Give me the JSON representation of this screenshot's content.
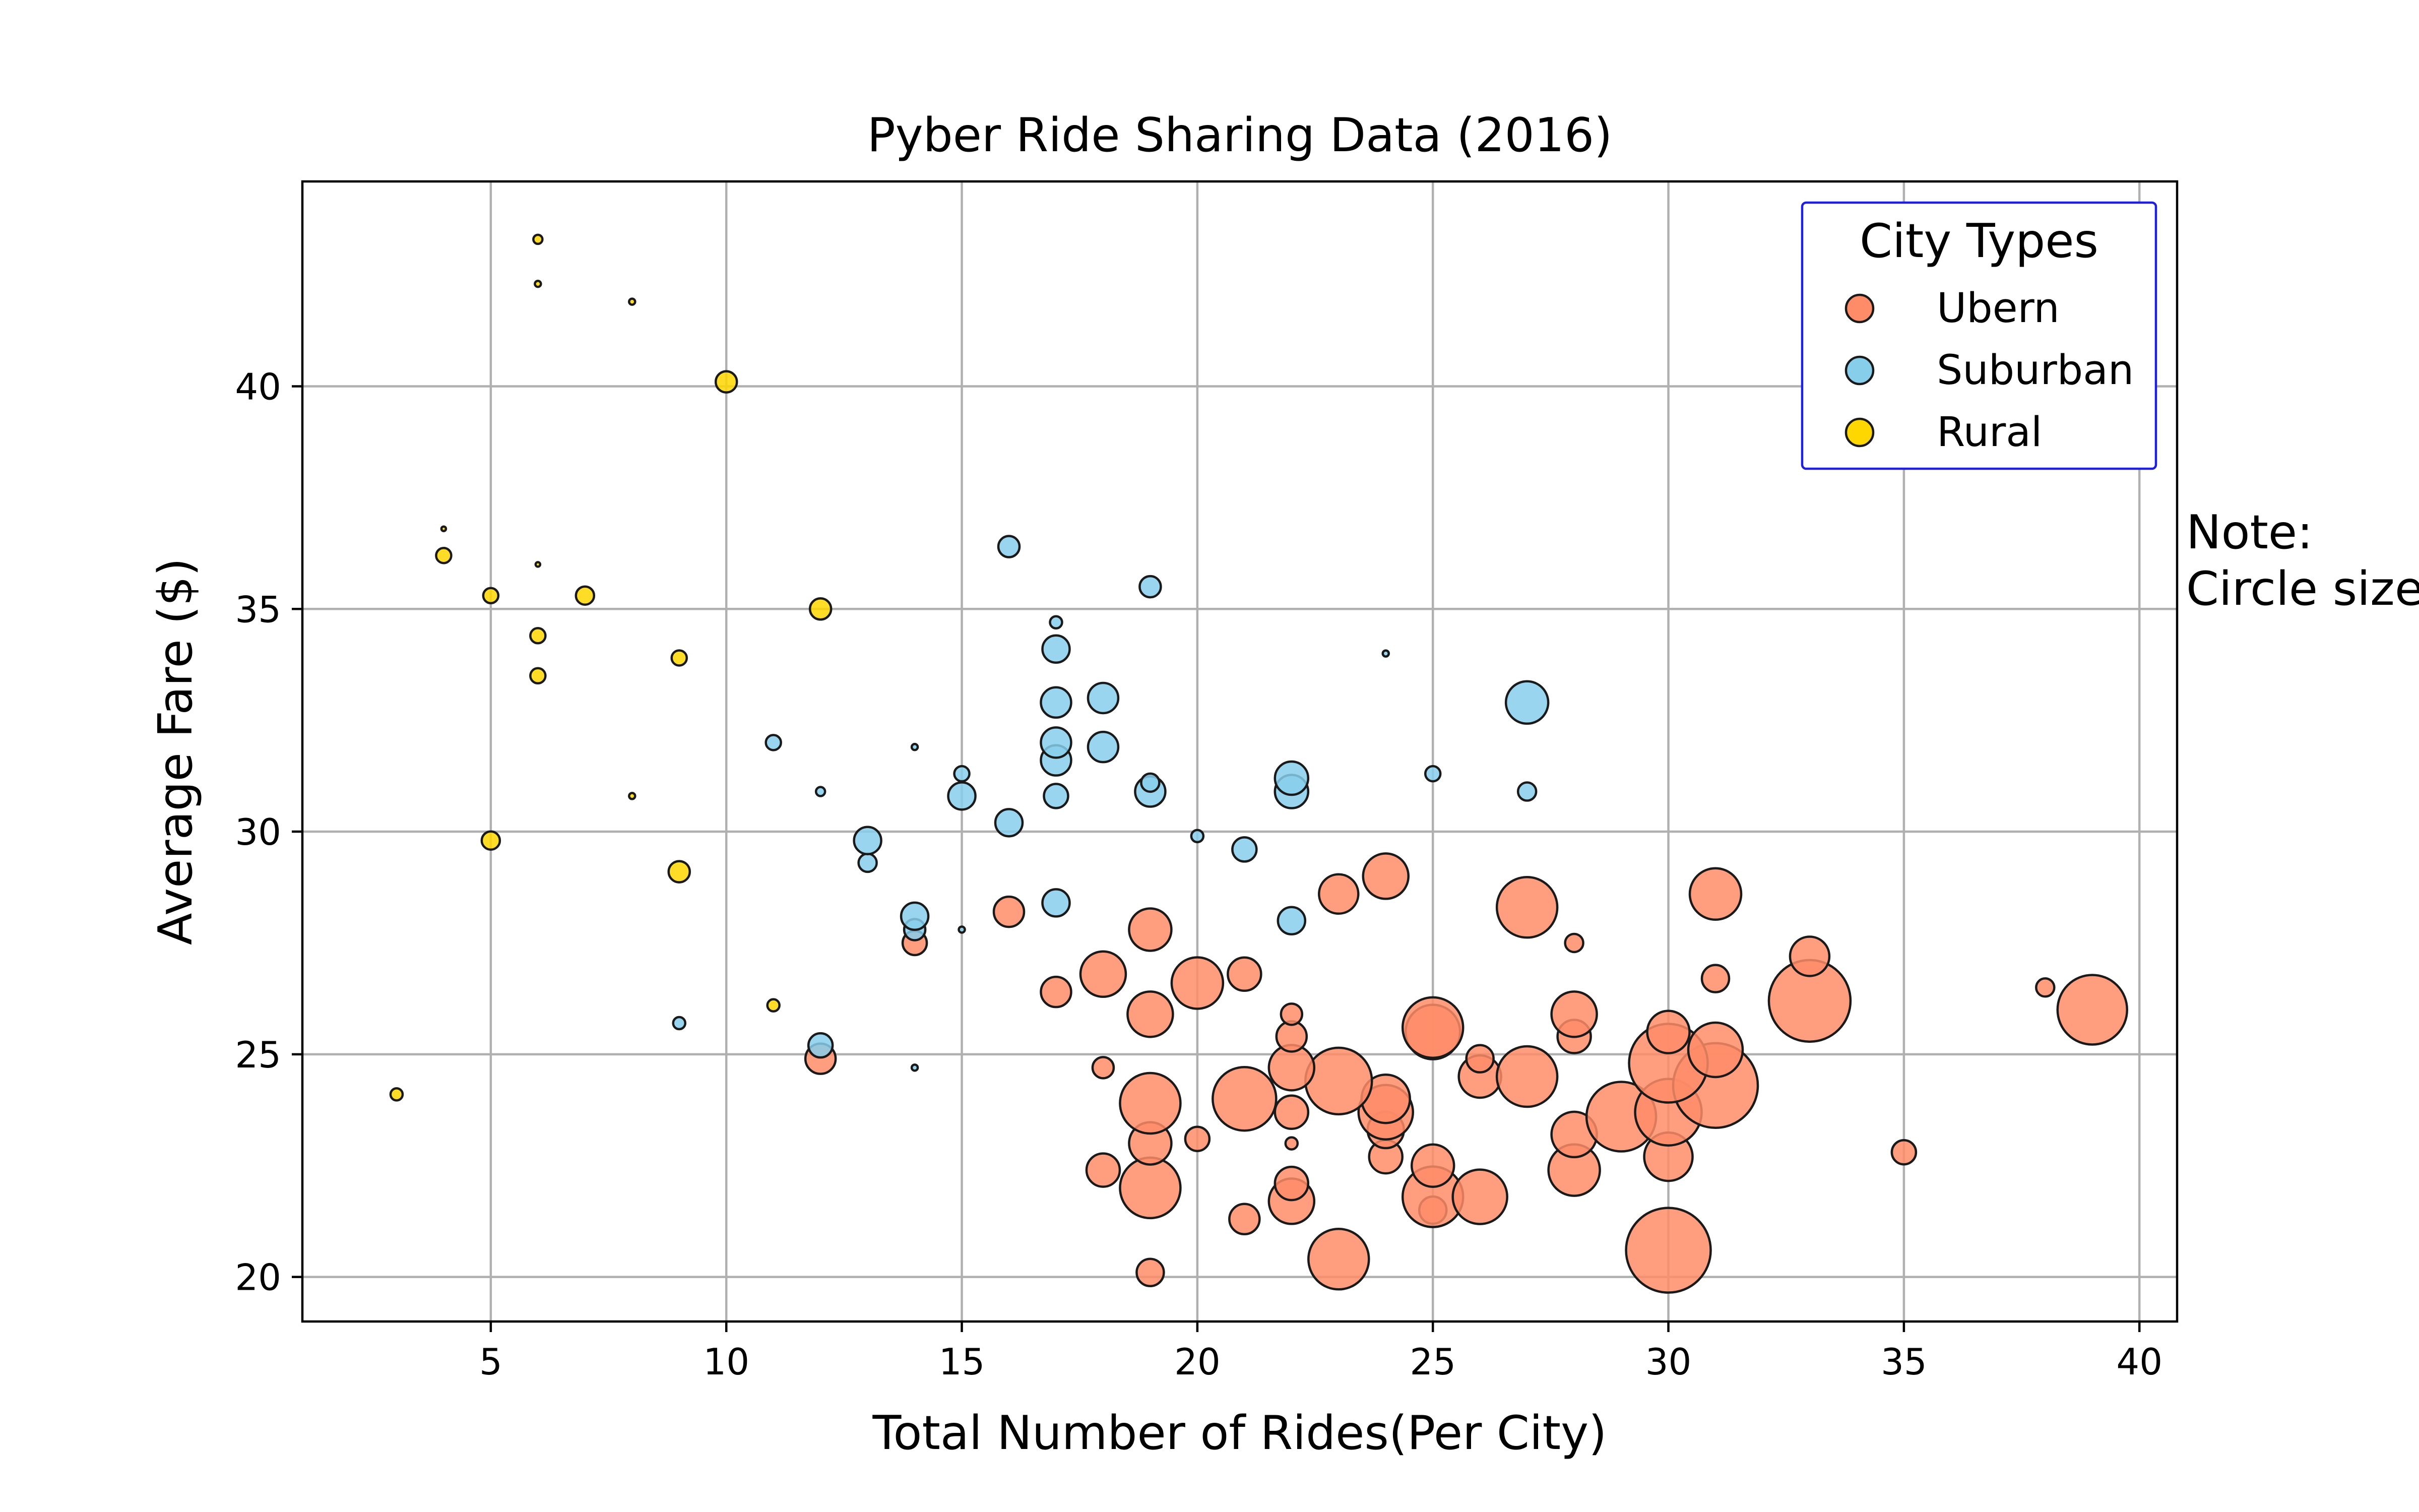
{
  "chart_data": {
    "type": "scatter",
    "title": "Pyber Ride Sharing Data (2016)",
    "xlabel": "Total Number of Rides(Per City)",
    "ylabel": "Average Fare ($)",
    "xlim": [
      1,
      40.8
    ],
    "ylim": [
      19,
      44.6
    ],
    "xticks": [
      5,
      10,
      15,
      20,
      25,
      30,
      35,
      40
    ],
    "yticks": [
      20,
      25,
      30,
      35,
      40
    ],
    "grid": true,
    "marker_size": "proportional to driver count (not labeled)",
    "note_text": [
      "Note:",
      "Circle size"
    ],
    "legend": {
      "title": "City Types",
      "placement": "top-right",
      "border_color": "#1f1fe0"
    },
    "series": [
      {
        "name": "Ubern",
        "color": "#ff8c69",
        "points": [
          {
            "x": 19,
            "y": 20.1,
            "r": 9
          },
          {
            "x": 23,
            "y": 20.4,
            "r": 20
          },
          {
            "x": 30,
            "y": 20.6,
            "r": 28
          },
          {
            "x": 21,
            "y": 21.3,
            "r": 10
          },
          {
            "x": 25,
            "y": 21.5,
            "r": 9
          },
          {
            "x": 22,
            "y": 21.7,
            "r": 15
          },
          {
            "x": 25,
            "y": 21.8,
            "r": 20
          },
          {
            "x": 26,
            "y": 21.8,
            "r": 18
          },
          {
            "x": 19,
            "y": 22.0,
            "r": 20
          },
          {
            "x": 22,
            "y": 22.1,
            "r": 11
          },
          {
            "x": 18,
            "y": 22.4,
            "r": 11
          },
          {
            "x": 28,
            "y": 22.4,
            "r": 17
          },
          {
            "x": 25,
            "y": 22.5,
            "r": 14
          },
          {
            "x": 24,
            "y": 22.7,
            "r": 11
          },
          {
            "x": 30,
            "y": 22.7,
            "r": 16
          },
          {
            "x": 35,
            "y": 22.8,
            "r": 8
          },
          {
            "x": 22,
            "y": 23.0,
            "r": 4
          },
          {
            "x": 19,
            "y": 23.0,
            "r": 14
          },
          {
            "x": 20,
            "y": 23.1,
            "r": 8
          },
          {
            "x": 28,
            "y": 23.2,
            "r": 15
          },
          {
            "x": 24,
            "y": 23.3,
            "r": 12
          },
          {
            "x": 29,
            "y": 23.6,
            "r": 23
          },
          {
            "x": 30,
            "y": 23.7,
            "r": 22
          },
          {
            "x": 22,
            "y": 23.7,
            "r": 11
          },
          {
            "x": 24,
            "y": 23.7,
            "r": 18
          },
          {
            "x": 19,
            "y": 23.9,
            "r": 20
          },
          {
            "x": 21,
            "y": 24.0,
            "r": 21
          },
          {
            "x": 24,
            "y": 24.0,
            "r": 16
          },
          {
            "x": 31,
            "y": 24.3,
            "r": 28
          },
          {
            "x": 23,
            "y": 24.4,
            "r": 22
          },
          {
            "x": 26,
            "y": 24.5,
            "r": 14
          },
          {
            "x": 27,
            "y": 24.5,
            "r": 20
          },
          {
            "x": 22,
            "y": 24.7,
            "r": 15
          },
          {
            "x": 18,
            "y": 24.7,
            "r": 7
          },
          {
            "x": 30,
            "y": 24.8,
            "r": 26
          },
          {
            "x": 12,
            "y": 24.9,
            "r": 10
          },
          {
            "x": 26,
            "y": 24.9,
            "r": 9
          },
          {
            "x": 31,
            "y": 25.1,
            "r": 18
          },
          {
            "x": 22,
            "y": 25.4,
            "r": 10
          },
          {
            "x": 28,
            "y": 25.4,
            "r": 11
          },
          {
            "x": 25,
            "y": 25.5,
            "r": 18
          },
          {
            "x": 30,
            "y": 25.5,
            "r": 14
          },
          {
            "x": 25,
            "y": 25.6,
            "r": 20
          },
          {
            "x": 19,
            "y": 25.9,
            "r": 15
          },
          {
            "x": 28,
            "y": 25.9,
            "r": 15
          },
          {
            "x": 22,
            "y": 25.9,
            "r": 7
          },
          {
            "x": 39,
            "y": 26.0,
            "r": 23
          },
          {
            "x": 33,
            "y": 26.2,
            "r": 27
          },
          {
            "x": 17,
            "y": 26.4,
            "r": 10
          },
          {
            "x": 38,
            "y": 26.5,
            "r": 6
          },
          {
            "x": 20,
            "y": 26.6,
            "r": 17
          },
          {
            "x": 31,
            "y": 26.7,
            "r": 9
          },
          {
            "x": 18,
            "y": 26.8,
            "r": 15
          },
          {
            "x": 21,
            "y": 26.8,
            "r": 11
          },
          {
            "x": 33,
            "y": 27.2,
            "r": 13
          },
          {
            "x": 28,
            "y": 27.5,
            "r": 6
          },
          {
            "x": 14,
            "y": 27.5,
            "r": 8
          },
          {
            "x": 19,
            "y": 27.8,
            "r": 14
          },
          {
            "x": 16,
            "y": 28.2,
            "r": 10
          },
          {
            "x": 27,
            "y": 28.3,
            "r": 20
          },
          {
            "x": 31,
            "y": 28.6,
            "r": 17
          },
          {
            "x": 23,
            "y": 28.6,
            "r": 13
          },
          {
            "x": 24,
            "y": 29.0,
            "r": 15
          }
        ]
      },
      {
        "name": "Suburban",
        "color": "#87ceeb",
        "points": [
          {
            "x": 14,
            "y": 24.7,
            "r": 2
          },
          {
            "x": 12,
            "y": 25.2,
            "r": 8
          },
          {
            "x": 9,
            "y": 25.7,
            "r": 4
          },
          {
            "x": 15,
            "y": 27.8,
            "r": 2
          },
          {
            "x": 14,
            "y": 27.8,
            "r": 7
          },
          {
            "x": 22,
            "y": 28.0,
            "r": 9
          },
          {
            "x": 14,
            "y": 28.1,
            "r": 9
          },
          {
            "x": 17,
            "y": 28.4,
            "r": 9
          },
          {
            "x": 13,
            "y": 29.3,
            "r": 6
          },
          {
            "x": 21,
            "y": 29.6,
            "r": 8
          },
          {
            "x": 13,
            "y": 29.8,
            "r": 9
          },
          {
            "x": 20,
            "y": 29.9,
            "r": 4
          },
          {
            "x": 16,
            "y": 30.2,
            "r": 9
          },
          {
            "x": 15,
            "y": 30.8,
            "r": 9
          },
          {
            "x": 17,
            "y": 30.8,
            "r": 8
          },
          {
            "x": 27,
            "y": 30.9,
            "r": 6
          },
          {
            "x": 12,
            "y": 30.9,
            "r": 3
          },
          {
            "x": 22,
            "y": 30.9,
            "r": 11
          },
          {
            "x": 19,
            "y": 30.9,
            "r": 10
          },
          {
            "x": 19,
            "y": 31.1,
            "r": 6
          },
          {
            "x": 22,
            "y": 31.2,
            "r": 11
          },
          {
            "x": 15,
            "y": 31.3,
            "r": 5
          },
          {
            "x": 25,
            "y": 31.3,
            "r": 5
          },
          {
            "x": 17,
            "y": 31.6,
            "r": 10
          },
          {
            "x": 18,
            "y": 31.9,
            "r": 10
          },
          {
            "x": 14,
            "y": 31.9,
            "r": 2
          },
          {
            "x": 11,
            "y": 32.0,
            "r": 5
          },
          {
            "x": 17,
            "y": 32.0,
            "r": 10
          },
          {
            "x": 27,
            "y": 32.9,
            "r": 14
          },
          {
            "x": 17,
            "y": 32.9,
            "r": 10
          },
          {
            "x": 18,
            "y": 33.0,
            "r": 10
          },
          {
            "x": 24,
            "y": 34.0,
            "r": 2
          },
          {
            "x": 17,
            "y": 34.1,
            "r": 9
          },
          {
            "x": 17,
            "y": 34.7,
            "r": 4
          },
          {
            "x": 19,
            "y": 35.5,
            "r": 7
          },
          {
            "x": 16,
            "y": 36.4,
            "r": 7
          }
        ]
      },
      {
        "name": "Rural",
        "color": "#ffd700",
        "points": [
          {
            "x": 3,
            "y": 24.1,
            "r": 4
          },
          {
            "x": 11,
            "y": 26.1,
            "r": 4
          },
          {
            "x": 9,
            "y": 29.1,
            "r": 7
          },
          {
            "x": 5,
            "y": 29.8,
            "r": 6
          },
          {
            "x": 8,
            "y": 30.8,
            "r": 2
          },
          {
            "x": 6,
            "y": 33.5,
            "r": 5
          },
          {
            "x": 9,
            "y": 33.9,
            "r": 5
          },
          {
            "x": 6,
            "y": 34.4,
            "r": 5
          },
          {
            "x": 12,
            "y": 35.0,
            "r": 7
          },
          {
            "x": 5,
            "y": 35.3,
            "r": 5
          },
          {
            "x": 7,
            "y": 35.3,
            "r": 6
          },
          {
            "x": 6,
            "y": 36.0,
            "r": 1.5
          },
          {
            "x": 4,
            "y": 36.2,
            "r": 5
          },
          {
            "x": 4,
            "y": 36.8,
            "r": 1.5
          },
          {
            "x": 10,
            "y": 40.1,
            "r": 7
          },
          {
            "x": 8,
            "y": 41.9,
            "r": 2
          },
          {
            "x": 6,
            "y": 42.3,
            "r": 2
          },
          {
            "x": 6,
            "y": 43.3,
            "r": 3
          }
        ]
      }
    ]
  }
}
